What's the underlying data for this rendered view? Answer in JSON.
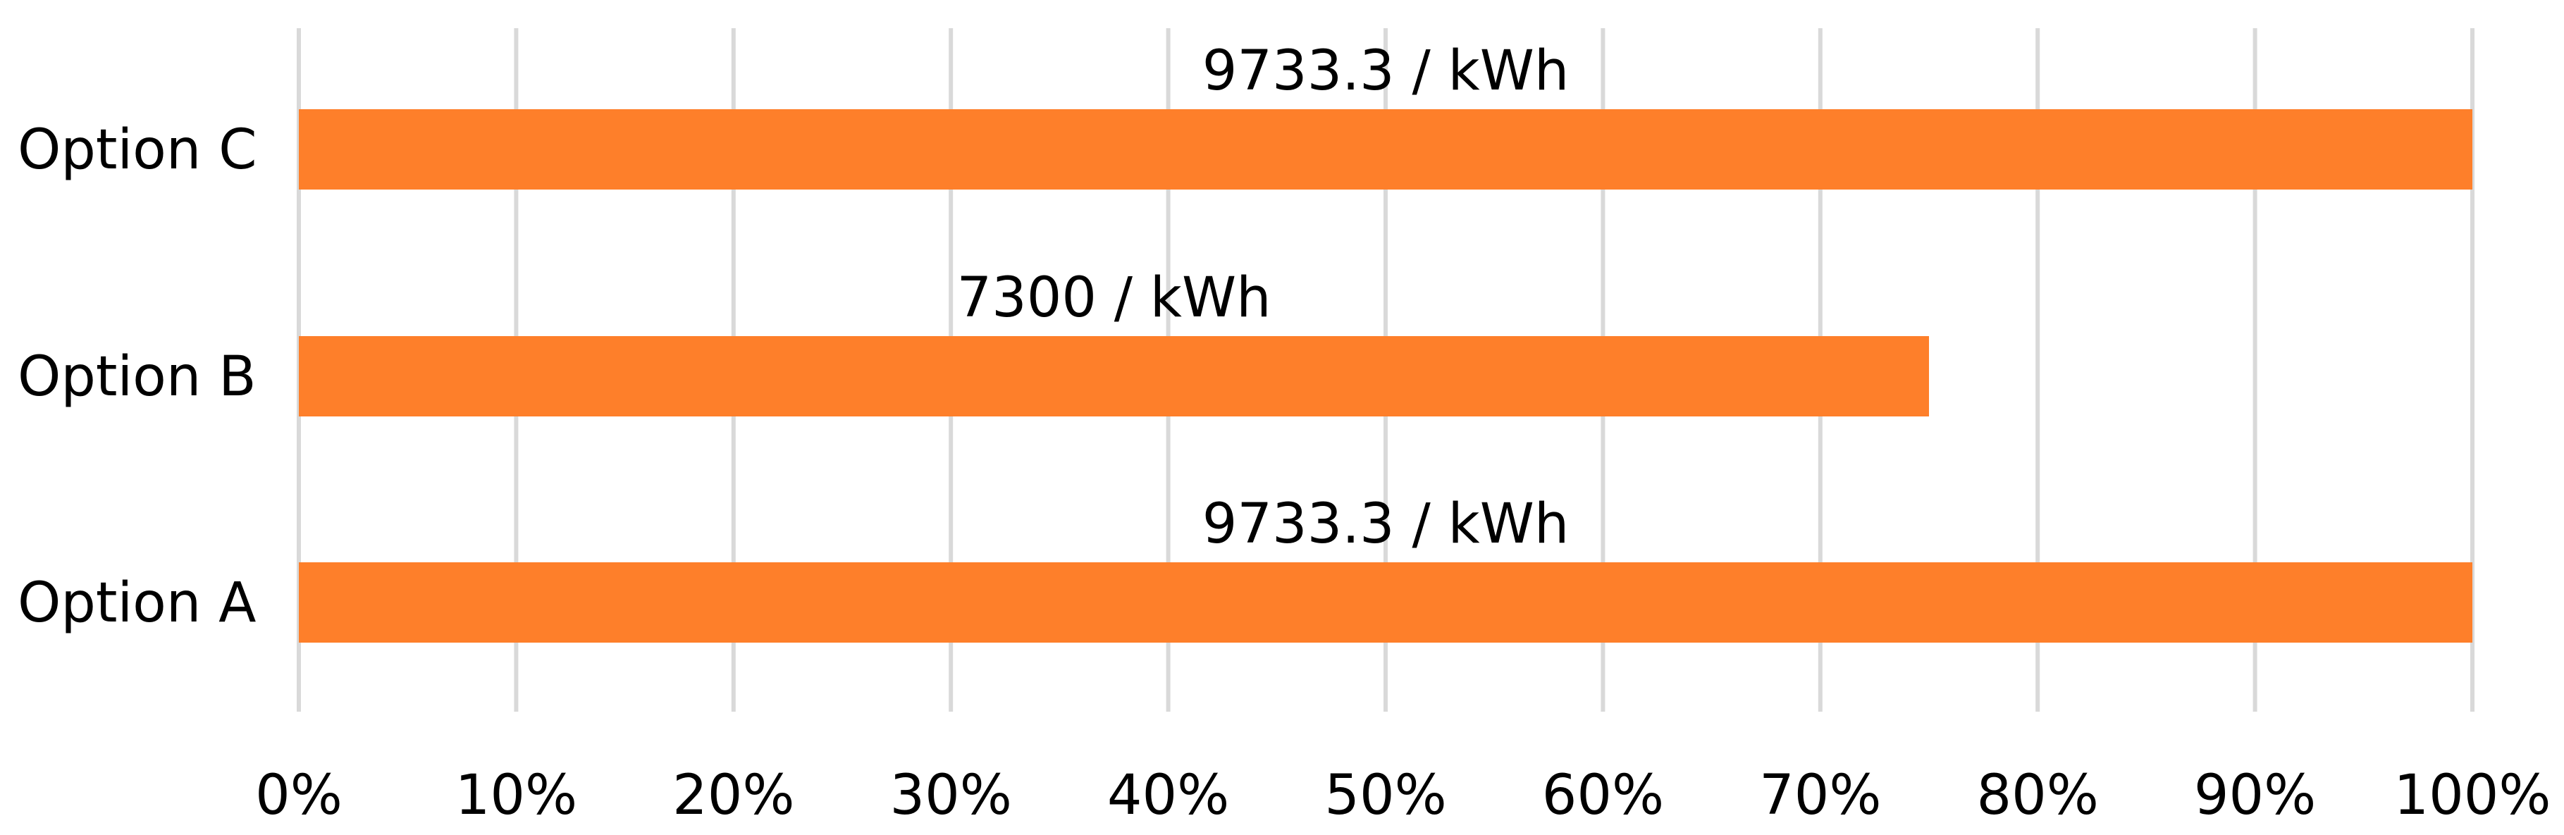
{
  "chart_data": {
    "type": "bar",
    "orientation": "horizontal",
    "title": "",
    "xlabel": "",
    "ylabel": "",
    "categories": [
      "Option A",
      "Option B",
      "Option C"
    ],
    "values": [
      100,
      75,
      100
    ],
    "data_labels": [
      "9733.3 / kWh",
      "7300 / kWh",
      "9733.3 / kWh"
    ],
    "xlim": [
      0,
      100
    ],
    "x_ticks": [
      "0%",
      "10%",
      "20%",
      "30%",
      "40%",
      "50%",
      "60%",
      "70%",
      "80%",
      "90%",
      "100%"
    ],
    "grid": "vertical",
    "legend": "none",
    "bar_color": "#fe7f2a",
    "grid_color": "#d9d9d9"
  }
}
